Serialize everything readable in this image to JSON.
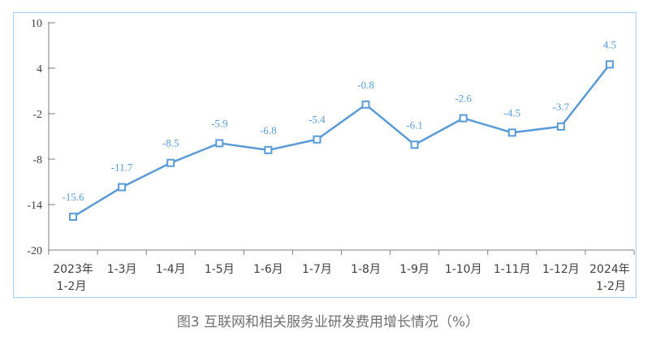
{
  "chart_data": {
    "type": "line",
    "title": "图3  互联网和相关服务业研发费用增长情况（%）",
    "xlabel": "",
    "ylabel": "",
    "ylim": [
      -20,
      10
    ],
    "yticks": [
      10,
      4,
      -2,
      -8,
      -14,
      -20
    ],
    "categories": [
      [
        "2023年",
        "1-2月"
      ],
      [
        "1-3月"
      ],
      [
        "1-4月"
      ],
      [
        "1-5月"
      ],
      [
        "1-6月"
      ],
      [
        "1-7月"
      ],
      [
        "1-8月"
      ],
      [
        "1-9月"
      ],
      [
        "1-10月"
      ],
      [
        "1-11月"
      ],
      [
        "1-12月"
      ],
      [
        "2024年",
        "1-2月"
      ]
    ],
    "series": [
      {
        "name": "研发费用增长",
        "values": [
          -15.6,
          -11.7,
          -8.5,
          -5.9,
          -6.8,
          -5.4,
          -0.8,
          -6.1,
          -2.6,
          -4.5,
          -3.7,
          4.5
        ],
        "labels": [
          "-15.6",
          "-11.7",
          "-8.5",
          "-5.9",
          "-6.8",
          "-5.4",
          "-0.8",
          "-6.1",
          "-2.6",
          "-4.5",
          "-3.7",
          "4.5"
        ]
      }
    ],
    "grid": false,
    "colors": {
      "line": "#5b9bd5",
      "label": "#5b9bd5",
      "axis": "#7f7f7f",
      "tick_text": "#404040",
      "frame": "#a9cdef"
    }
  }
}
